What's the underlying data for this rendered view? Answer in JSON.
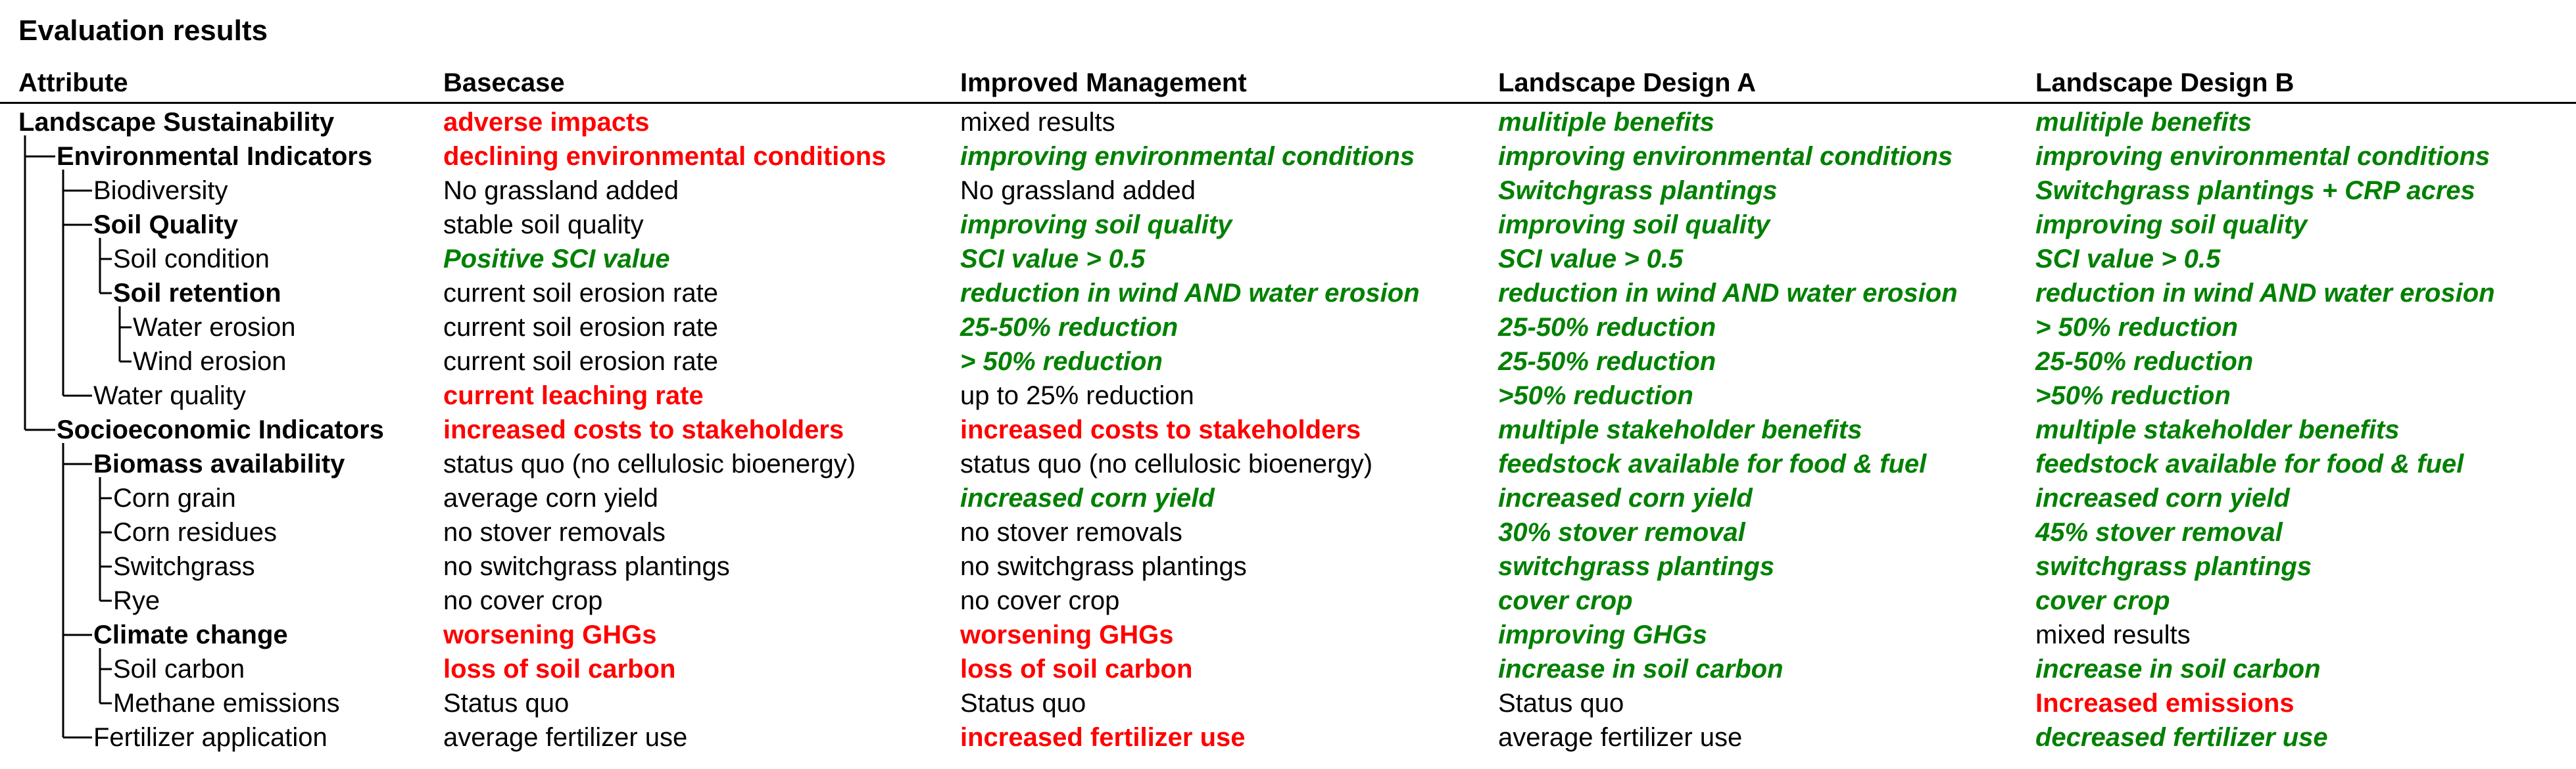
{
  "title": "Evaluation results",
  "headers": {
    "attribute": "Attribute",
    "basecase": "Basecase",
    "improved": "Improved Management",
    "design_a": "Landscape Design A",
    "design_b": "Landscape Design B"
  },
  "status_colors": {
    "negative": "#ff0000",
    "positive": "#008000",
    "neutral": "#000000"
  },
  "rows": [
    {
      "attribute": "Landscape Sustainability",
      "level": 0,
      "bold": true,
      "cells": [
        {
          "text": "adverse impacts",
          "status": "neg"
        },
        {
          "text": "mixed results",
          "status": "neu"
        },
        {
          "text": "mulitiple benefits",
          "status": "pos"
        },
        {
          "text": "mulitiple benefits",
          "status": "pos"
        }
      ]
    },
    {
      "attribute": "Environmental Indicators",
      "level": 1,
      "bold": true,
      "cells": [
        {
          "text": "declining environmental conditions",
          "status": "neg"
        },
        {
          "text": "improving environmental conditions",
          "status": "pos"
        },
        {
          "text": "improving environmental conditions",
          "status": "pos"
        },
        {
          "text": "improving environmental conditions",
          "status": "pos"
        }
      ]
    },
    {
      "attribute": "Biodiversity",
      "level": 2,
      "bold": false,
      "cells": [
        {
          "text": "No grassland added",
          "status": "neu"
        },
        {
          "text": "No grassland added",
          "status": "neu"
        },
        {
          "text": "Switchgrass plantings",
          "status": "pos"
        },
        {
          "text": "Switchgrass plantings  + CRP acres",
          "status": "pos"
        }
      ]
    },
    {
      "attribute": "Soil Quality",
      "level": 2,
      "bold": true,
      "cells": [
        {
          "text": "stable soil quality",
          "status": "neu"
        },
        {
          "text": "improving soil quality",
          "status": "pos"
        },
        {
          "text": "improving soil quality",
          "status": "pos"
        },
        {
          "text": "improving soil quality",
          "status": "pos"
        }
      ]
    },
    {
      "attribute": "Soil condition",
      "level": 3,
      "bold": false,
      "cells": [
        {
          "text": "Positive SCI value",
          "status": "pos"
        },
        {
          "text": "SCI value > 0.5",
          "status": "pos"
        },
        {
          "text": "SCI value > 0.5",
          "status": "pos"
        },
        {
          "text": "SCI value > 0.5",
          "status": "pos"
        }
      ]
    },
    {
      "attribute": "Soil retention",
      "level": 3,
      "bold": true,
      "cells": [
        {
          "text": "current soil erosion rate",
          "status": "neu"
        },
        {
          "text": "reduction in wind AND water erosion",
          "status": "pos"
        },
        {
          "text": "reduction in wind AND water erosion",
          "status": "pos"
        },
        {
          "text": "reduction in wind AND water erosion",
          "status": "pos"
        }
      ]
    },
    {
      "attribute": "Water erosion",
      "level": 4,
      "bold": false,
      "cells": [
        {
          "text": "current soil erosion rate",
          "status": "neu"
        },
        {
          "text": "25-50% reduction",
          "status": "pos"
        },
        {
          "text": "25-50% reduction",
          "status": "pos"
        },
        {
          "text": "> 50% reduction",
          "status": "pos"
        }
      ]
    },
    {
      "attribute": "Wind erosion",
      "level": 4,
      "bold": false,
      "cells": [
        {
          "text": "current soil erosion rate",
          "status": "neu"
        },
        {
          "text": "> 50% reduction",
          "status": "pos"
        },
        {
          "text": "25-50% reduction",
          "status": "pos"
        },
        {
          "text": "25-50% reduction",
          "status": "pos"
        }
      ]
    },
    {
      "attribute": "Water quality",
      "level": 2,
      "bold": false,
      "cells": [
        {
          "text": "current leaching rate",
          "status": "neg"
        },
        {
          "text": "up to 25% reduction",
          "status": "neu"
        },
        {
          "text": ">50% reduction",
          "status": "pos"
        },
        {
          "text": ">50% reduction",
          "status": "pos"
        }
      ]
    },
    {
      "attribute": "Socioeconomic Indicators",
      "level": 1,
      "bold": true,
      "cells": [
        {
          "text": "increased costs to stakeholders",
          "status": "neg"
        },
        {
          "text": "increased costs to stakeholders",
          "status": "neg"
        },
        {
          "text": "multiple stakeholder benefits",
          "status": "pos"
        },
        {
          "text": "multiple stakeholder benefits",
          "status": "pos"
        }
      ]
    },
    {
      "attribute": "Biomass availability",
      "level": 2,
      "bold": true,
      "cells": [
        {
          "text": "status quo (no cellulosic bioenergy)",
          "status": "neu"
        },
        {
          "text": "status quo (no cellulosic bioenergy)",
          "status": "neu"
        },
        {
          "text": "feedstock available for food & fuel",
          "status": "pos"
        },
        {
          "text": "feedstock available for food & fuel",
          "status": "pos"
        }
      ]
    },
    {
      "attribute": "Corn grain",
      "level": 3,
      "bold": false,
      "cells": [
        {
          "text": "average corn yield",
          "status": "neu"
        },
        {
          "text": "increased corn yield",
          "status": "pos"
        },
        {
          "text": "increased corn yield",
          "status": "pos"
        },
        {
          "text": "increased corn yield",
          "status": "pos"
        }
      ]
    },
    {
      "attribute": "Corn residues",
      "level": 3,
      "bold": false,
      "cells": [
        {
          "text": "no stover removals",
          "status": "neu"
        },
        {
          "text": "no stover removals",
          "status": "neu"
        },
        {
          "text": "30% stover removal",
          "status": "pos"
        },
        {
          "text": "45% stover removal",
          "status": "pos"
        }
      ]
    },
    {
      "attribute": "Switchgrass",
      "level": 3,
      "bold": false,
      "cells": [
        {
          "text": "no switchgrass plantings",
          "status": "neu"
        },
        {
          "text": "no switchgrass plantings",
          "status": "neu"
        },
        {
          "text": "switchgrass plantings",
          "status": "pos"
        },
        {
          "text": "switchgrass plantings",
          "status": "pos"
        }
      ]
    },
    {
      "attribute": "Rye",
      "level": 3,
      "bold": false,
      "cells": [
        {
          "text": "no cover crop",
          "status": "neu"
        },
        {
          "text": "no cover crop",
          "status": "neu"
        },
        {
          "text": "cover crop",
          "status": "pos"
        },
        {
          "text": "cover crop",
          "status": "pos"
        }
      ]
    },
    {
      "attribute": "Climate change",
      "level": 2,
      "bold": true,
      "cells": [
        {
          "text": "worsening GHGs",
          "status": "neg"
        },
        {
          "text": "worsening GHGs",
          "status": "neg"
        },
        {
          "text": "improving GHGs",
          "status": "pos"
        },
        {
          "text": "mixed results",
          "status": "neu"
        }
      ]
    },
    {
      "attribute": "Soil carbon",
      "level": 3,
      "bold": false,
      "cells": [
        {
          "text": "loss of soil carbon",
          "status": "neg"
        },
        {
          "text": "loss of soil carbon",
          "status": "neg"
        },
        {
          "text": "increase in soil carbon",
          "status": "pos"
        },
        {
          "text": "increase in soil carbon",
          "status": "pos"
        }
      ]
    },
    {
      "attribute": "Methane emissions",
      "level": 3,
      "bold": false,
      "cells": [
        {
          "text": "Status quo",
          "status": "neu"
        },
        {
          "text": "Status quo",
          "status": "neu"
        },
        {
          "text": "Status quo",
          "status": "neu"
        },
        {
          "text": "Increased emissions",
          "status": "neg"
        }
      ]
    },
    {
      "attribute": "Fertilizer application",
      "level": 2,
      "bold": false,
      "cells": [
        {
          "text": "average fertilizer use",
          "status": "neu"
        },
        {
          "text": "increased fertilizer use",
          "status": "neg"
        },
        {
          "text": "average fertilizer use",
          "status": "neu"
        },
        {
          "text": "decreased fertilizer use",
          "status": "pos"
        }
      ]
    }
  ]
}
